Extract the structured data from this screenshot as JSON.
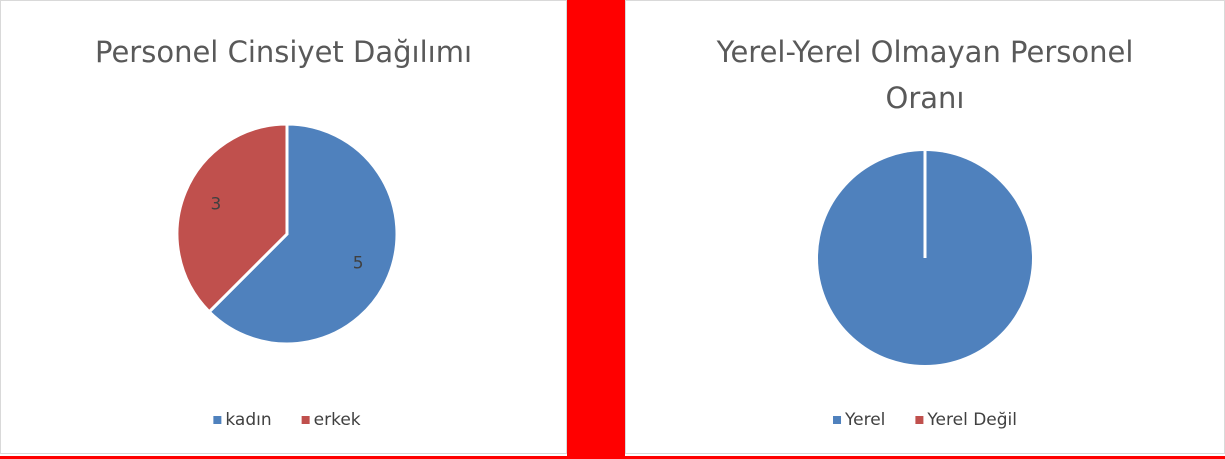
{
  "chart_data": [
    {
      "type": "pie",
      "title": "Personel Cinsiyet Dağılımı",
      "categories": [
        "kadın",
        "erkek"
      ],
      "values": [
        5,
        3
      ],
      "colors": [
        "#4f81bd",
        "#c0504d"
      ],
      "data_labels": true,
      "legend": "bottom"
    },
    {
      "type": "pie",
      "title": "Yerel-Yerel Olmayan Personel Oranı",
      "categories": [
        "Yerel",
        "Yerel Değil"
      ],
      "values": [
        8,
        0
      ],
      "colors": [
        "#4f81bd",
        "#c0504d"
      ],
      "data_labels": false,
      "legend": "bottom"
    }
  ]
}
